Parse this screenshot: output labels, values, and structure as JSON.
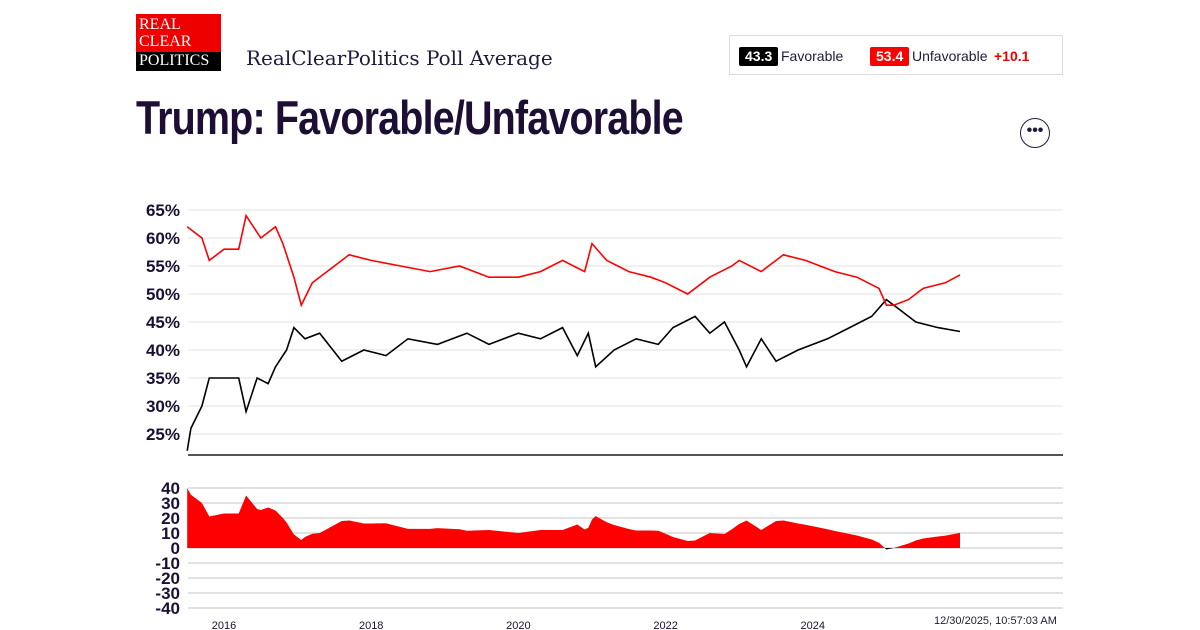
{
  "header": {
    "logo_lines": [
      "REAL",
      "CLEAR",
      "POLITICS"
    ],
    "subtitle": "RealClearPolitics Poll Average",
    "title": "Trump: Favorable/Unfavorable",
    "more_icon": "ellipsis-icon"
  },
  "legend": {
    "favorable_value": "43.3",
    "favorable_label": "Favorable",
    "unfavorable_value": "53.4",
    "unfavorable_label": "Unfavorable",
    "spread": "+10.1"
  },
  "timestamp": "12/30/2025, 10:57:03 AM",
  "colors": {
    "favorable": "#000000",
    "unfavorable": "#ff0000",
    "spread_positive": "#ff0000",
    "spread_negative": "#000000",
    "title": "#1d0f33"
  },
  "chart_data": [
    {
      "type": "line",
      "ylim": [
        22,
        65
      ],
      "yticks": [
        "65%",
        "60%",
        "55%",
        "50%",
        "45%",
        "40%",
        "35%",
        "30%",
        "25%"
      ],
      "ytick_values": [
        65,
        60,
        55,
        50,
        45,
        40,
        35,
        30,
        25
      ],
      "grid": true,
      "series": [
        {
          "name": "Favorable",
          "color": "#000000",
          "points": [
            [
              2015.5,
              22
            ],
            [
              2015.55,
              26
            ],
            [
              2015.7,
              30
            ],
            [
              2015.8,
              35
            ],
            [
              2016.1,
              35
            ],
            [
              2016.2,
              35
            ],
            [
              2016.3,
              29
            ],
            [
              2016.45,
              35
            ],
            [
              2016.6,
              34
            ],
            [
              2016.7,
              37
            ],
            [
              2016.85,
              40
            ],
            [
              2016.95,
              44
            ],
            [
              2017.1,
              42
            ],
            [
              2017.3,
              43
            ],
            [
              2017.6,
              38
            ],
            [
              2017.9,
              40
            ],
            [
              2018.2,
              39
            ],
            [
              2018.5,
              42
            ],
            [
              2018.9,
              41
            ],
            [
              2019.3,
              43
            ],
            [
              2019.6,
              41
            ],
            [
              2020.0,
              43
            ],
            [
              2020.3,
              42
            ],
            [
              2020.6,
              44
            ],
            [
              2020.8,
              39
            ],
            [
              2020.95,
              43
            ],
            [
              2021.05,
              37
            ],
            [
              2021.3,
              40
            ],
            [
              2021.6,
              42
            ],
            [
              2021.9,
              41
            ],
            [
              2022.1,
              44
            ],
            [
              2022.4,
              46
            ],
            [
              2022.6,
              43
            ],
            [
              2022.8,
              45
            ],
            [
              2023.0,
              40
            ],
            [
              2023.1,
              37
            ],
            [
              2023.3,
              42
            ],
            [
              2023.5,
              38
            ],
            [
              2023.8,
              40
            ],
            [
              2024.2,
              42
            ],
            [
              2024.5,
              44
            ],
            [
              2024.8,
              46
            ],
            [
              2025.0,
              49
            ],
            [
              2025.2,
              47
            ],
            [
              2025.4,
              45
            ],
            [
              2025.7,
              44
            ],
            [
              2026.0,
              43.3
            ]
          ]
        },
        {
          "name": "Unfavorable",
          "color": "#ff0000",
          "points": [
            [
              2015.5,
              62
            ],
            [
              2015.7,
              60
            ],
            [
              2015.8,
              56
            ],
            [
              2016.0,
              58
            ],
            [
              2016.2,
              58
            ],
            [
              2016.3,
              64
            ],
            [
              2016.5,
              60
            ],
            [
              2016.7,
              62
            ],
            [
              2016.8,
              59
            ],
            [
              2016.95,
              53
            ],
            [
              2017.05,
              48
            ],
            [
              2017.2,
              52
            ],
            [
              2017.5,
              55
            ],
            [
              2017.7,
              57
            ],
            [
              2018.0,
              56
            ],
            [
              2018.4,
              55
            ],
            [
              2018.8,
              54
            ],
            [
              2019.2,
              55
            ],
            [
              2019.6,
              53
            ],
            [
              2020.0,
              53
            ],
            [
              2020.3,
              54
            ],
            [
              2020.6,
              56
            ],
            [
              2020.9,
              54
            ],
            [
              2021.0,
              59
            ],
            [
              2021.2,
              56
            ],
            [
              2021.5,
              54
            ],
            [
              2021.8,
              53
            ],
            [
              2022.0,
              52
            ],
            [
              2022.3,
              50
            ],
            [
              2022.6,
              53
            ],
            [
              2022.9,
              55
            ],
            [
              2023.0,
              56
            ],
            [
              2023.3,
              54
            ],
            [
              2023.6,
              57
            ],
            [
              2023.9,
              56
            ],
            [
              2024.3,
              54
            ],
            [
              2024.6,
              53
            ],
            [
              2024.9,
              51
            ],
            [
              2025.0,
              48
            ],
            [
              2025.1,
              48
            ],
            [
              2025.3,
              49
            ],
            [
              2025.5,
              51
            ],
            [
              2025.8,
              52
            ],
            [
              2026.0,
              53.4
            ]
          ]
        }
      ]
    },
    {
      "type": "area",
      "name": "Spread",
      "ylim": [
        -40,
        40
      ],
      "yticks": [
        "40",
        "30",
        "20",
        "10",
        "0",
        "-10",
        "-20",
        "-30",
        "-40"
      ],
      "ytick_values": [
        40,
        30,
        20,
        10,
        0,
        -10,
        -20,
        -30,
        -40
      ],
      "grid": true,
      "xticks": [
        "2016",
        "2018",
        "2020",
        "2022",
        "2024"
      ],
      "xtick_values": [
        2016,
        2018,
        2020,
        2022,
        2024
      ]
    }
  ]
}
